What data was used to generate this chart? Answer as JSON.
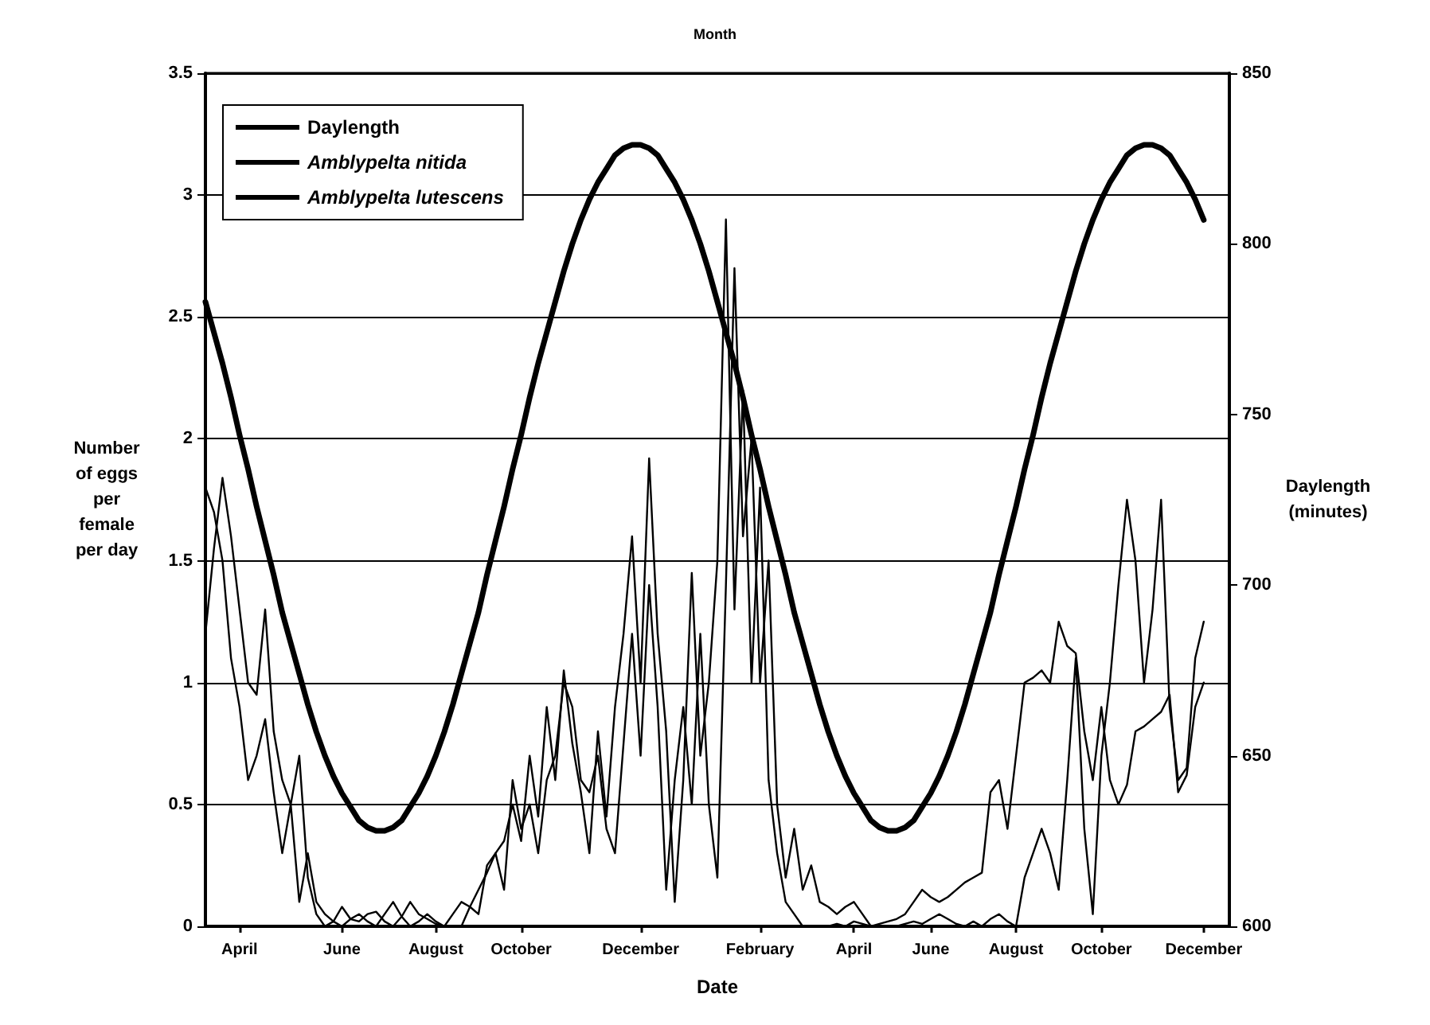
{
  "chart_data": {
    "type": "line",
    "title": "Month",
    "xlabel": "Date",
    "ylabel": "Number of eggs per female per day",
    "y2label": "Daylength (minutes)",
    "categories": [
      null,
      null,
      null,
      null,
      "April",
      null,
      null,
      null,
      null,
      null,
      null,
      null,
      null,
      null,
      null,
      null,
      "June",
      null,
      null,
      null,
      null,
      null,
      null,
      null,
      null,
      null,
      null,
      "August",
      null,
      null,
      null,
      null,
      null,
      null,
      null,
      null,
      null,
      "October",
      null,
      null,
      null,
      null,
      null,
      null,
      null,
      null,
      null,
      null,
      null,
      null,
      null,
      "December",
      null,
      null,
      null,
      null,
      null,
      null,
      null,
      null,
      null,
      null,
      null,
      null,
      null,
      "February",
      null,
      null,
      null,
      null,
      null,
      null,
      null,
      null,
      null,
      null,
      "April",
      null,
      null,
      null,
      null,
      null,
      null,
      null,
      null,
      "June",
      null,
      null,
      null,
      null,
      null,
      null,
      null,
      null,
      null,
      "August",
      null,
      null,
      null,
      null,
      null,
      null,
      null,
      null,
      null,
      "October",
      null,
      null,
      null,
      null,
      null,
      null,
      null,
      null,
      null,
      null,
      null,
      "December",
      null,
      null,
      null
    ],
    "ylim": [
      0,
      3.5
    ],
    "yticks": [
      0,
      0.5,
      1,
      1.5,
      2,
      2.5,
      3,
      3.5
    ],
    "y2lim": [
      600,
      850
    ],
    "y2ticks": [
      600,
      650,
      700,
      750,
      800,
      850
    ],
    "grid": "y",
    "legend": "top left",
    "marker": "none",
    "line_style": "solid",
    "series": [
      {
        "name": "Daylength",
        "color": "#000000",
        "axis": "y2",
        "values": [
          783,
          774,
          765,
          755,
          744,
          734,
          723,
          713,
          703,
          692,
          683,
          674,
          665,
          657,
          650,
          644,
          639,
          635,
          631,
          629,
          628,
          628,
          629,
          631,
          635,
          639,
          644,
          650,
          657,
          665,
          674,
          683,
          692,
          703,
          713,
          723,
          734,
          744,
          755,
          765,
          774,
          783,
          792,
          800,
          807,
          813,
          818,
          822,
          826,
          828,
          829,
          829,
          828,
          826,
          822,
          818,
          813,
          807,
          800,
          792,
          783,
          774,
          765,
          755,
          744,
          734,
          723,
          713,
          703,
          692,
          683,
          674,
          665,
          657,
          650,
          644,
          639,
          635,
          631,
          629,
          628,
          628,
          629,
          631,
          635,
          639,
          644,
          650,
          657,
          665,
          674,
          683,
          692,
          703,
          713,
          723,
          734,
          744,
          755,
          765,
          774,
          783,
          792,
          800,
          807,
          813,
          818,
          822,
          826,
          828,
          829,
          829,
          828,
          826,
          822,
          818,
          813,
          807,
          null,
          null,
          null
        ]
      },
      {
        "name": "Amblypelta nitida",
        "color": "#000000",
        "values": [
          1.2,
          1.55,
          1.84,
          1.6,
          1.3,
          1,
          0.95,
          1.3,
          0.8,
          0.6,
          0.5,
          0.7,
          0.2,
          0.05,
          0,
          0.02,
          0.08,
          0.03,
          0.02,
          0.05,
          0.06,
          0.02,
          0,
          0.04,
          0.1,
          0.05,
          0.03,
          0.01,
          0,
          0.05,
          0.1,
          0.08,
          0.05,
          0.25,
          0.3,
          0.35,
          0.5,
          0.35,
          0.7,
          0.45,
          0.9,
          0.6,
          1.05,
          0.75,
          0.55,
          0.3,
          0.8,
          0.45,
          0.9,
          1.2,
          1.6,
          1,
          1.92,
          1.2,
          0.8,
          0.1,
          0.6,
          1.45,
          0.7,
          1,
          1.5,
          2.9,
          1.3,
          2.2,
          1,
          1.8,
          0.6,
          0.3,
          0.1,
          0.05,
          0,
          0,
          0,
          0,
          0.01,
          0,
          0.02,
          0.01,
          0,
          0,
          0,
          0,
          0.01,
          0.02,
          0.01,
          0.03,
          0.05,
          0.03,
          0.01,
          0,
          0.02,
          0,
          0.03,
          0.05,
          0.02,
          0,
          0.2,
          0.3,
          0.4,
          0.3,
          0.15,
          0.6,
          1.1,
          0.4,
          0.05,
          0.7,
          1,
          1.4,
          1.75,
          1.5,
          1,
          1.3,
          1.75,
          0.9,
          0.6,
          0.65,
          1.1,
          1.25,
          null,
          null,
          null
        ]
      },
      {
        "name": "Amblypelta lutescens",
        "color": "#000000",
        "values": [
          1.8,
          1.7,
          1.5,
          1.1,
          0.9,
          0.6,
          0.7,
          0.85,
          0.55,
          0.3,
          0.5,
          0.1,
          0.3,
          0.1,
          0.05,
          0.02,
          0,
          0.03,
          0.05,
          0.02,
          0,
          0.05,
          0.1,
          0.04,
          0,
          0.02,
          0.05,
          0.02,
          0,
          0,
          0,
          0.08,
          0.15,
          0.22,
          0.3,
          0.15,
          0.6,
          0.4,
          0.5,
          0.3,
          0.6,
          0.7,
          1,
          0.9,
          0.6,
          0.55,
          0.7,
          0.4,
          0.3,
          0.75,
          1.2,
          0.7,
          1.4,
          0.9,
          0.15,
          0.6,
          0.9,
          0.5,
          1.2,
          0.5,
          0.2,
          1.4,
          2.7,
          1.6,
          2,
          1,
          1.5,
          0.5,
          0.2,
          0.4,
          0.15,
          0.25,
          0.1,
          0.08,
          0.05,
          0.08,
          0.1,
          0.05,
          0,
          0.01,
          0.02,
          0.03,
          0.05,
          0.1,
          0.15,
          0.12,
          0.1,
          0.12,
          0.15,
          0.18,
          0.2,
          0.22,
          0.55,
          0.6,
          0.4,
          0.7,
          1,
          1.02,
          1.05,
          1,
          1.25,
          1.15,
          1.12,
          0.8,
          0.6,
          0.9,
          0.6,
          0.5,
          0.58,
          0.8,
          0.82,
          0.85,
          0.88,
          0.95,
          0.55,
          0.62,
          0.9,
          1,
          null,
          null,
          null
        ]
      }
    ]
  }
}
